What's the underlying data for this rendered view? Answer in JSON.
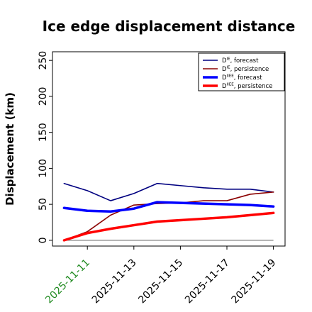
{
  "chart_data": {
    "type": "line",
    "title": "Ice edge displacement distance",
    "ylabel": "Displacement (km)",
    "xlabel": "",
    "ylim": [
      -8,
      262
    ],
    "yticks": [
      0,
      50,
      100,
      150,
      200,
      250
    ],
    "xlim": [
      "2025-11-09T12:00",
      "2025-11-19T12:00"
    ],
    "xticks": [
      {
        "date": "2025-11-11",
        "label": "2025-11-11",
        "color": "#228b22"
      },
      {
        "date": "2025-11-13",
        "label": "2025-11-13",
        "color": "#000000"
      },
      {
        "date": "2025-11-15",
        "label": "2025-11-15",
        "color": "#000000"
      },
      {
        "date": "2025-11-17",
        "label": "2025-11-17",
        "color": "#000000"
      },
      {
        "date": "2025-11-19",
        "label": "2025-11-19",
        "color": "#000000"
      }
    ],
    "x": [
      "2025-11-10",
      "2025-11-11",
      "2025-11-12",
      "2025-11-13",
      "2025-11-14",
      "2025-11-15",
      "2025-11-16",
      "2025-11-17",
      "2025-11-18",
      "2025-11-19"
    ],
    "baseline": {
      "y": 0,
      "color": "#808080"
    },
    "legend_position": "top-right",
    "grid": false,
    "series": [
      {
        "name_main": "D",
        "name_sup": "IE",
        "name_rest": ", forecast",
        "color": "#000080",
        "width": 1.6,
        "values": [
          79,
          69,
          55,
          65,
          79,
          76,
          73,
          71,
          71,
          67
        ]
      },
      {
        "name_main": "D",
        "name_sup": "IE",
        "name_rest": ", persistence",
        "color": "#8b0000",
        "width": 1.6,
        "values": [
          0,
          12,
          35,
          49,
          51,
          52,
          55,
          55,
          64,
          67
        ]
      },
      {
        "name_main": "D",
        "name_sup": "IIEE",
        "name_rest": ", forecast",
        "color": "#0000ff",
        "width": 3.5,
        "values": [
          45,
          41,
          40,
          44,
          53,
          52,
          51,
          50,
          49,
          47
        ]
      },
      {
        "name_main": "D",
        "name_sup": "IIEE",
        "name_rest": ", persistence",
        "color": "#ff0000",
        "width": 3.5,
        "values": [
          0,
          10,
          16,
          21,
          26,
          28,
          30,
          32,
          35,
          38
        ]
      }
    ]
  }
}
